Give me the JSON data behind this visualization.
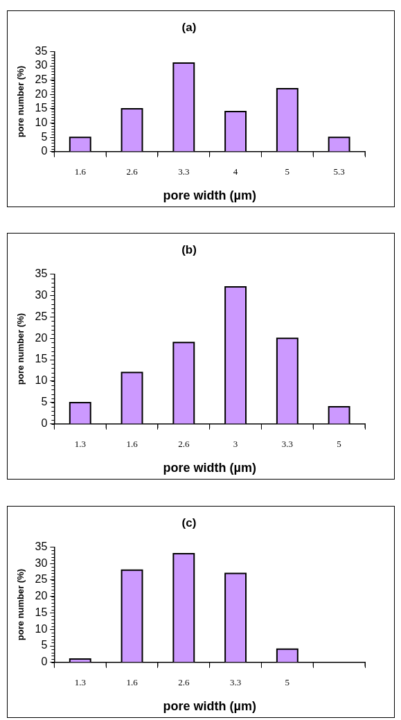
{
  "chart_data": [
    {
      "type": "bar",
      "title": "(a)",
      "xlabel": "pore width (µm)",
      "ylabel": "pore number (%)",
      "categories": [
        "1.6",
        "2.6",
        "3.3",
        "4",
        "5",
        "5.3"
      ],
      "values": [
        5,
        15,
        31,
        14,
        22,
        5
      ],
      "color": "#cc99ff",
      "ylim": [
        0,
        35
      ],
      "yticks": [
        0,
        5,
        10,
        15,
        20,
        25,
        30,
        35
      ],
      "grid": false,
      "legend": false
    },
    {
      "type": "bar",
      "title": "(b)",
      "xlabel": "pore width (µm)",
      "ylabel": "pore number (%)",
      "categories": [
        "1.3",
        "1.6",
        "2.6",
        "3",
        "3.3",
        "5"
      ],
      "values": [
        5,
        12,
        19,
        32,
        20,
        4
      ],
      "color": "#cc99ff",
      "ylim": [
        0,
        35
      ],
      "yticks": [
        0,
        5,
        10,
        15,
        20,
        25,
        30,
        35
      ],
      "grid": false,
      "legend": false
    },
    {
      "type": "bar",
      "title": "(c)",
      "xlabel": "pore width (µm)",
      "ylabel": "pore number (%)",
      "categories": [
        "1.3",
        "1.6",
        "2.6",
        "3.3",
        "5",
        null
      ],
      "values": [
        1,
        28,
        33,
        27,
        4,
        null
      ],
      "color": "#cc99ff",
      "ylim": [
        0,
        35
      ],
      "yticks": [
        0,
        5,
        10,
        15,
        20,
        25,
        30,
        35
      ],
      "grid": false,
      "legend": false
    }
  ]
}
